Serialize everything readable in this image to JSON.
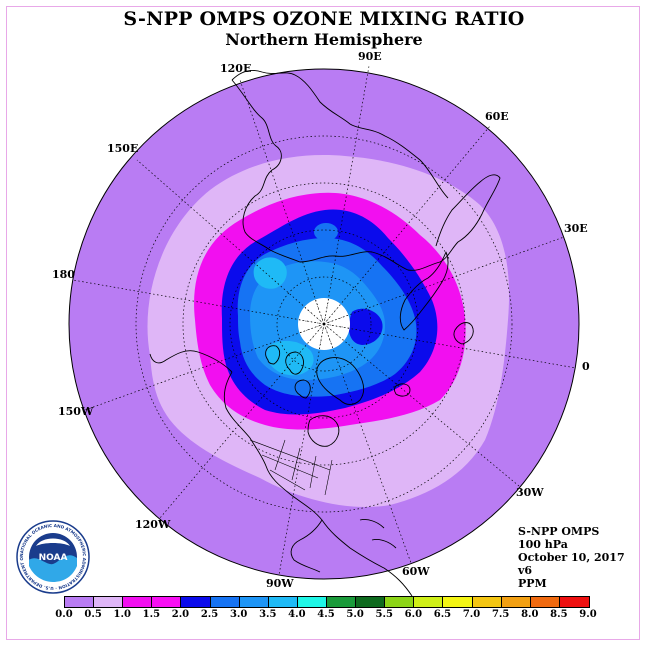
{
  "header": {
    "title": "S-NPP OMPS OZONE MIXING RATIO",
    "subtitle": "Northern Hemisphere"
  },
  "longitude_labels": {
    "lon_90e": "90E",
    "lon_60e": "60E",
    "lon_30e": "30E",
    "lon_0": "0",
    "lon_30w": "30W",
    "lon_60w": "60W",
    "lon_90w": "90W",
    "lon_120w": "120W",
    "lon_150w": "150W",
    "lon_180": "180",
    "lon_150e": "150E",
    "lon_120e": "120E"
  },
  "info": {
    "instrument": "S-NPP OMPS",
    "level": "100 hPa",
    "date": "October 10, 2017",
    "version": "v6",
    "units": "PPM"
  },
  "legend": {
    "ticks": [
      "0.0",
      "0.5",
      "1.0",
      "1.5",
      "2.0",
      "2.5",
      "3.0",
      "3.5",
      "4.0",
      "4.5",
      "5.0",
      "5.5",
      "6.0",
      "6.5",
      "7.0",
      "7.5",
      "8.0",
      "8.5",
      "9.0"
    ],
    "colors": [
      "#b97cf3",
      "#dfb6f7",
      "#f20ff0",
      "#f80ff3",
      "#0b0bec",
      "#1673f3",
      "#1e95f6",
      "#1fbaf6",
      "#1ff6e6",
      "#1a9a3a",
      "#0e6a1e",
      "#8cd417",
      "#cfef18",
      "#f4f514",
      "#f4c613",
      "#f2a013",
      "#f06a10",
      "#ee1010",
      "#7d4a30"
    ],
    "range": [
      0.0,
      9.0
    ]
  },
  "logo": {
    "name": "NOAA",
    "text": "NATIONAL OCEANIC AND ATMOSPHERIC ADMINISTRATION · U.S. DEPARTMENT OF COMMERCE"
  },
  "colors": {
    "band_0_05": "#b97cf3",
    "band_05_10": "#dfb6f7",
    "band_10_15": "#f20ff0",
    "band_15_20": "#0b0bec",
    "band_20_25": "#1673f3",
    "band_25_30": "#1e95f6",
    "band_30_35": "#1fbaf6",
    "no_data": "#ffffff"
  }
}
